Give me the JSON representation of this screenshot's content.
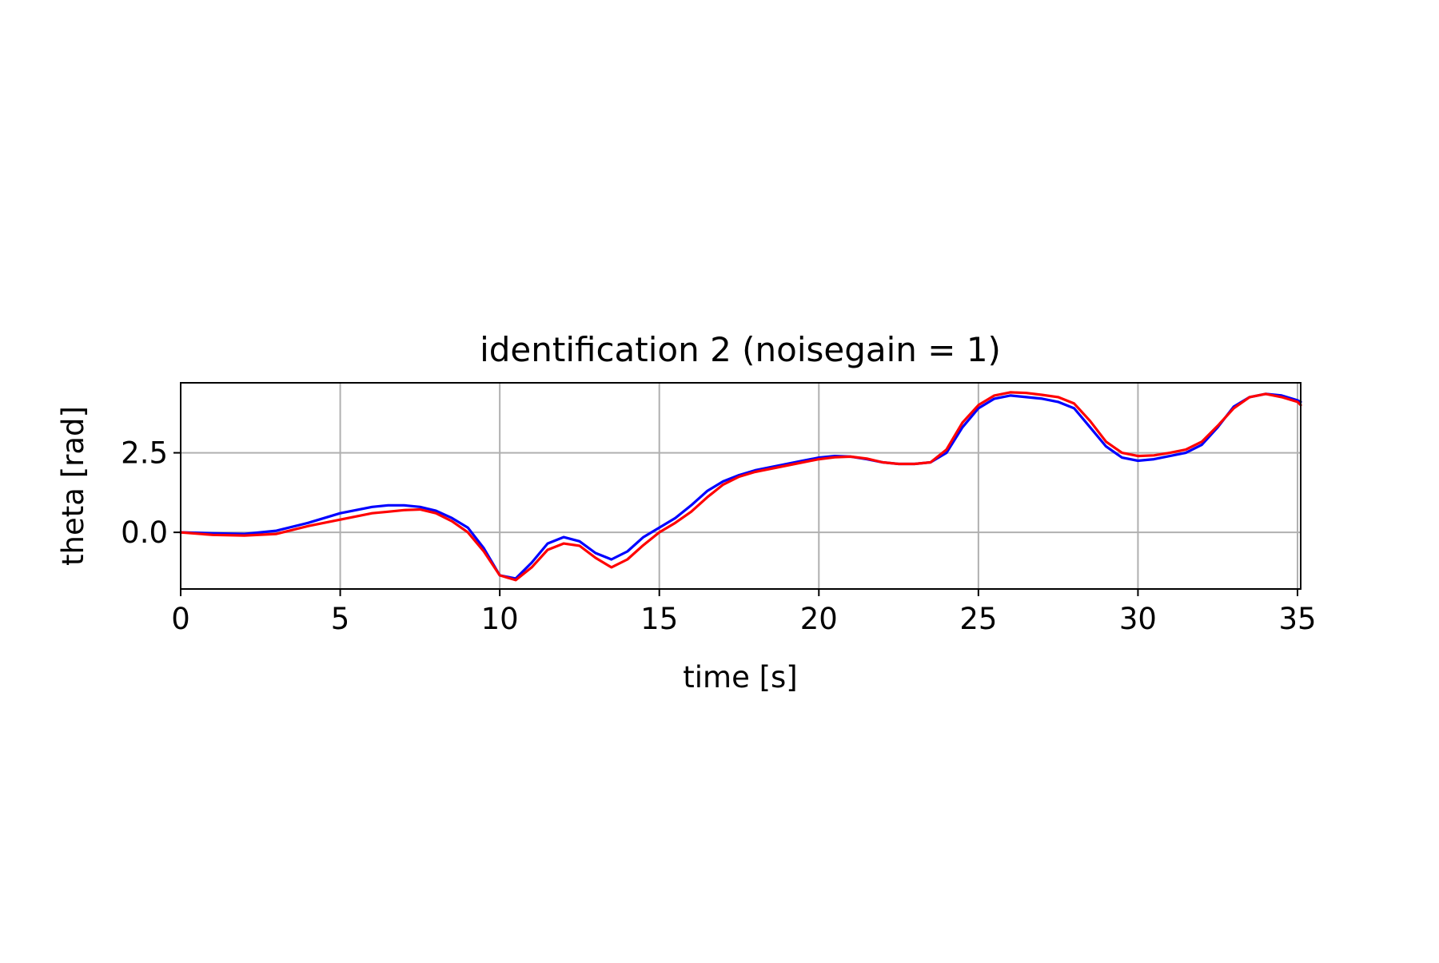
{
  "chart_data": {
    "type": "line",
    "title": "identification 2 (noisegain = 1)",
    "xlabel": "time [s]",
    "ylabel": "theta [rad]",
    "xlim": [
      0,
      35.1
    ],
    "ylim": [
      -1.78,
      4.7
    ],
    "xticks": [
      0,
      5,
      10,
      15,
      20,
      25,
      30,
      35
    ],
    "xtick_labels": [
      "0",
      "5",
      "10",
      "15",
      "20",
      "25",
      "30",
      "35"
    ],
    "yticks": [
      0.0,
      2.5
    ],
    "ytick_labels": [
      "0.0",
      "2.5"
    ],
    "grid": true,
    "legend": null,
    "series": [
      {
        "color": "#0000ff",
        "x": [
          0,
          1,
          2,
          3,
          4,
          5,
          6,
          6.5,
          7,
          7.5,
          8,
          8.5,
          9,
          9.5,
          10,
          10.5,
          11,
          11.5,
          12,
          12.5,
          13,
          13.5,
          14,
          14.5,
          15,
          15.5,
          16,
          16.5,
          17,
          17.5,
          18,
          18.5,
          19,
          19.5,
          20,
          20.5,
          21,
          21.5,
          22,
          22.5,
          23,
          23.5,
          24,
          24.5,
          25,
          25.5,
          26,
          26.5,
          27,
          27.5,
          28,
          28.5,
          29,
          29.5,
          30,
          30.5,
          31,
          31.5,
          32,
          32.5,
          33,
          33.5,
          34,
          34.5,
          35,
          35.1
        ],
        "values": [
          0.0,
          -0.03,
          -0.05,
          0.05,
          0.3,
          0.6,
          0.8,
          0.85,
          0.85,
          0.8,
          0.68,
          0.45,
          0.15,
          -0.5,
          -1.35,
          -1.45,
          -0.95,
          -0.35,
          -0.15,
          -0.28,
          -0.65,
          -0.85,
          -0.6,
          -0.15,
          0.15,
          0.45,
          0.85,
          1.3,
          1.6,
          1.8,
          1.95,
          2.05,
          2.15,
          2.25,
          2.35,
          2.4,
          2.38,
          2.3,
          2.2,
          2.15,
          2.15,
          2.2,
          2.5,
          3.3,
          3.9,
          4.2,
          4.3,
          4.25,
          4.2,
          4.1,
          3.9,
          3.3,
          2.7,
          2.35,
          2.25,
          2.3,
          2.4,
          2.5,
          2.75,
          3.3,
          3.95,
          4.25,
          4.35,
          4.3,
          4.15,
          4.1
        ]
      },
      {
        "color": "#ff0000",
        "x": [
          0,
          1,
          2,
          3,
          4,
          5,
          6,
          6.5,
          7,
          7.5,
          8,
          8.5,
          9,
          9.5,
          10,
          10.5,
          11,
          11.5,
          12,
          12.5,
          13,
          13.5,
          14,
          14.5,
          15,
          15.5,
          16,
          16.5,
          17,
          17.5,
          18,
          18.5,
          19,
          19.5,
          20,
          20.5,
          21,
          21.5,
          22,
          22.5,
          23,
          23.5,
          24,
          24.5,
          25,
          25.5,
          26,
          26.5,
          27,
          27.5,
          28,
          28.5,
          29,
          29.5,
          30,
          30.5,
          31,
          31.5,
          32,
          32.5,
          33,
          33.5,
          34,
          34.5,
          35,
          35.1
        ],
        "values": [
          0.0,
          -0.08,
          -0.1,
          -0.05,
          0.2,
          0.4,
          0.6,
          0.65,
          0.7,
          0.72,
          0.6,
          0.35,
          0.0,
          -0.6,
          -1.35,
          -1.5,
          -1.1,
          -0.55,
          -0.35,
          -0.42,
          -0.8,
          -1.1,
          -0.85,
          -0.4,
          0.0,
          0.3,
          0.65,
          1.1,
          1.5,
          1.75,
          1.9,
          2.0,
          2.1,
          2.2,
          2.3,
          2.36,
          2.38,
          2.32,
          2.2,
          2.15,
          2.15,
          2.2,
          2.6,
          3.45,
          4.0,
          4.3,
          4.4,
          4.38,
          4.32,
          4.25,
          4.05,
          3.5,
          2.85,
          2.5,
          2.4,
          2.42,
          2.5,
          2.6,
          2.85,
          3.35,
          3.9,
          4.25,
          4.35,
          4.25,
          4.1,
          4.0
        ]
      }
    ]
  }
}
